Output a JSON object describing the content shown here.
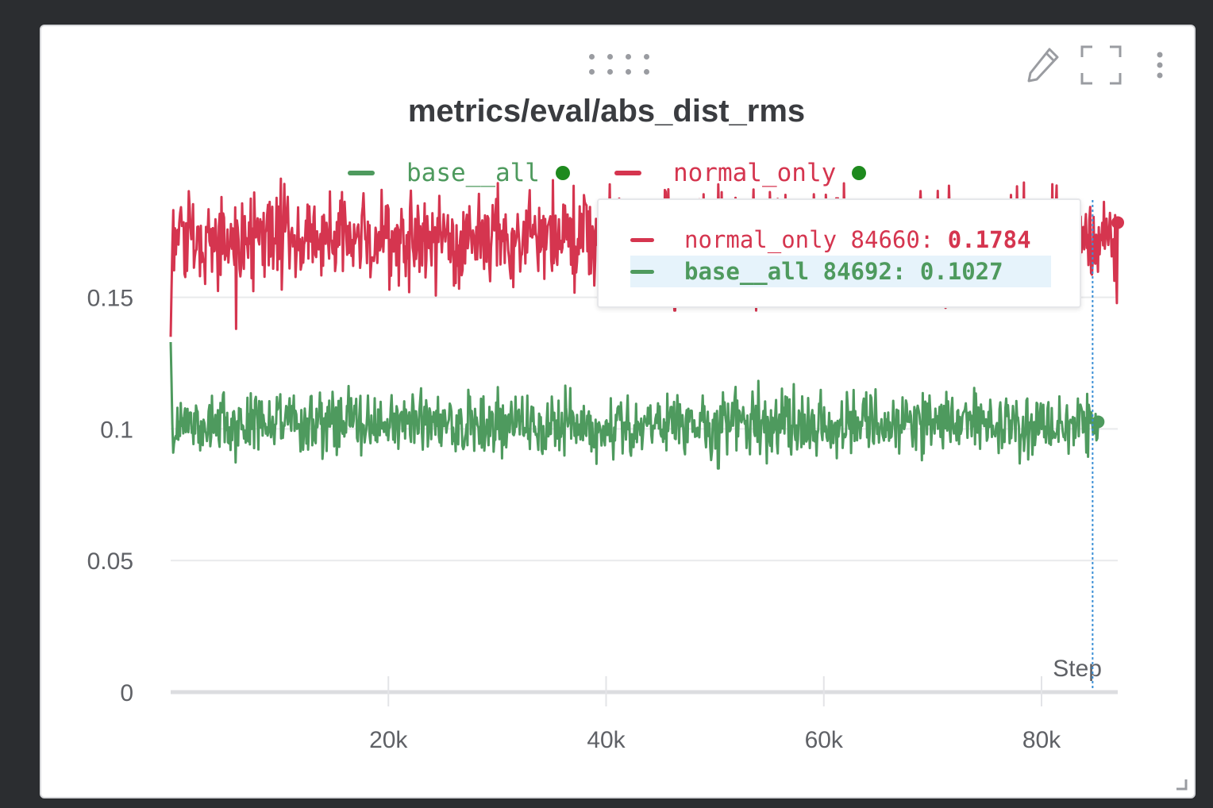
{
  "panel": {
    "title": "metrics/eval/abs_dist_rms",
    "icons": [
      "drag-handle-icon",
      "pencil-icon",
      "fullscreen-icon",
      "more-vert-icon",
      "resize-corner-icon"
    ]
  },
  "legend": {
    "items": [
      {
        "label": "base__all",
        "color": "#4e9a5e"
      },
      {
        "label": "normal_only",
        "color": "#d5354f"
      }
    ],
    "status_dot_color": "#1e8a1e"
  },
  "tooltip": {
    "rows": [
      {
        "series": "normal_only",
        "step": "84660",
        "value": "0.1784",
        "color": "#d5354f",
        "highlighted": false
      },
      {
        "series": "base__all",
        "step": "84692",
        "value": "0.1027",
        "color": "#4e9a5e",
        "highlighted": true
      }
    ]
  },
  "chart_data": {
    "type": "line",
    "title": "metrics/eval/abs_dist_rms",
    "xlabel": "Step",
    "ylabel": "",
    "xlim": [
      0,
      87000
    ],
    "ylim": [
      0,
      0.19
    ],
    "x_ticks": [
      20000,
      40000,
      60000,
      80000
    ],
    "x_tick_labels": [
      "20k",
      "40k",
      "60k",
      "80k"
    ],
    "y_ticks": [
      0,
      0.05,
      0.1,
      0.15
    ],
    "y_tick_labels": [
      "0",
      "0.05",
      "0.1",
      "0.15"
    ],
    "grid": true,
    "legend_position": "top-center",
    "hover_step": 84692,
    "series": [
      {
        "name": "normal_only",
        "color": "#d5354f",
        "x_start": 0,
        "x_end": 87000,
        "mean": 0.172,
        "noise": 0.011,
        "initial": 0.135,
        "last_value": 0.1784,
        "spikes": [
          [
            6000,
            0.138
          ],
          [
            46300,
            0.145
          ],
          [
            53800,
            0.145
          ],
          [
            56100,
            0.147
          ],
          [
            71200,
            0.146
          ]
        ]
      },
      {
        "name": "base__all",
        "color": "#4e9a5e",
        "x_start": 0,
        "x_end": 85200,
        "mean": 0.102,
        "noise": 0.0075,
        "initial": 0.133,
        "last_value": 0.1027,
        "spikes": [
          [
            50300,
            0.085
          ]
        ]
      }
    ]
  }
}
